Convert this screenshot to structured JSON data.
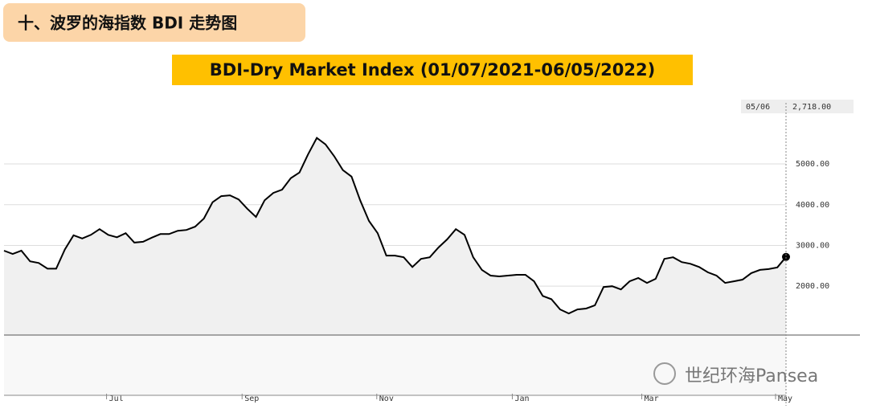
{
  "section_title": "十、波罗的海指数 BDI 走势图",
  "watermark": "世纪环海Pansea",
  "chart_data": {
    "type": "line",
    "title": "BDI-Dry Market Index (01/07/2021-06/05/2022)",
    "color": "#000000",
    "values": [
      2870,
      2790,
      2870,
      2610,
      2570,
      2430,
      2430,
      2900,
      3250,
      3170,
      3260,
      3400,
      3260,
      3200,
      3300,
      3070,
      3090,
      3190,
      3280,
      3280,
      3360,
      3380,
      3460,
      3660,
      4060,
      4210,
      4230,
      4130,
      3900,
      3700,
      4110,
      4290,
      4370,
      4650,
      4790,
      5240,
      5640,
      5480,
      5190,
      4850,
      4690,
      4100,
      3600,
      3300,
      2750,
      2750,
      2710,
      2470,
      2670,
      2710,
      2950,
      3150,
      3400,
      3260,
      2710,
      2400,
      2260,
      2240,
      2260,
      2280,
      2280,
      2120,
      1760,
      1680,
      1430,
      1330,
      1430,
      1450,
      1530,
      1980,
      2000,
      1920,
      2120,
      2200,
      2080,
      2180,
      2670,
      2710,
      2590,
      2550,
      2470,
      2340,
      2260,
      2080,
      2120,
      2160,
      2320,
      2400,
      2420,
      2460,
      2718
    ],
    "xlim": [
      0,
      90
    ],
    "xticks": [
      {
        "value": 11.8,
        "label": "Jul"
      },
      {
        "value": 27.4,
        "label": "Sep"
      },
      {
        "value": 42.9,
        "label": "Nov"
      },
      {
        "value": 58.5,
        "label": "Jan"
      },
      {
        "value": 73.4,
        "label": "Mar"
      },
      {
        "value": 88.8,
        "label": "May"
      }
    ],
    "ylim": [
      800,
      6500
    ],
    "yticks": [
      {
        "value": 2000,
        "label": "2000.00"
      },
      {
        "value": 3000,
        "label": "3000.00"
      },
      {
        "value": 4000,
        "label": "4000.00"
      },
      {
        "value": 5000,
        "label": "5000.00"
      }
    ],
    "end_label": {
      "date": "05/06",
      "label": "2,718.00"
    },
    "grid": true
  }
}
